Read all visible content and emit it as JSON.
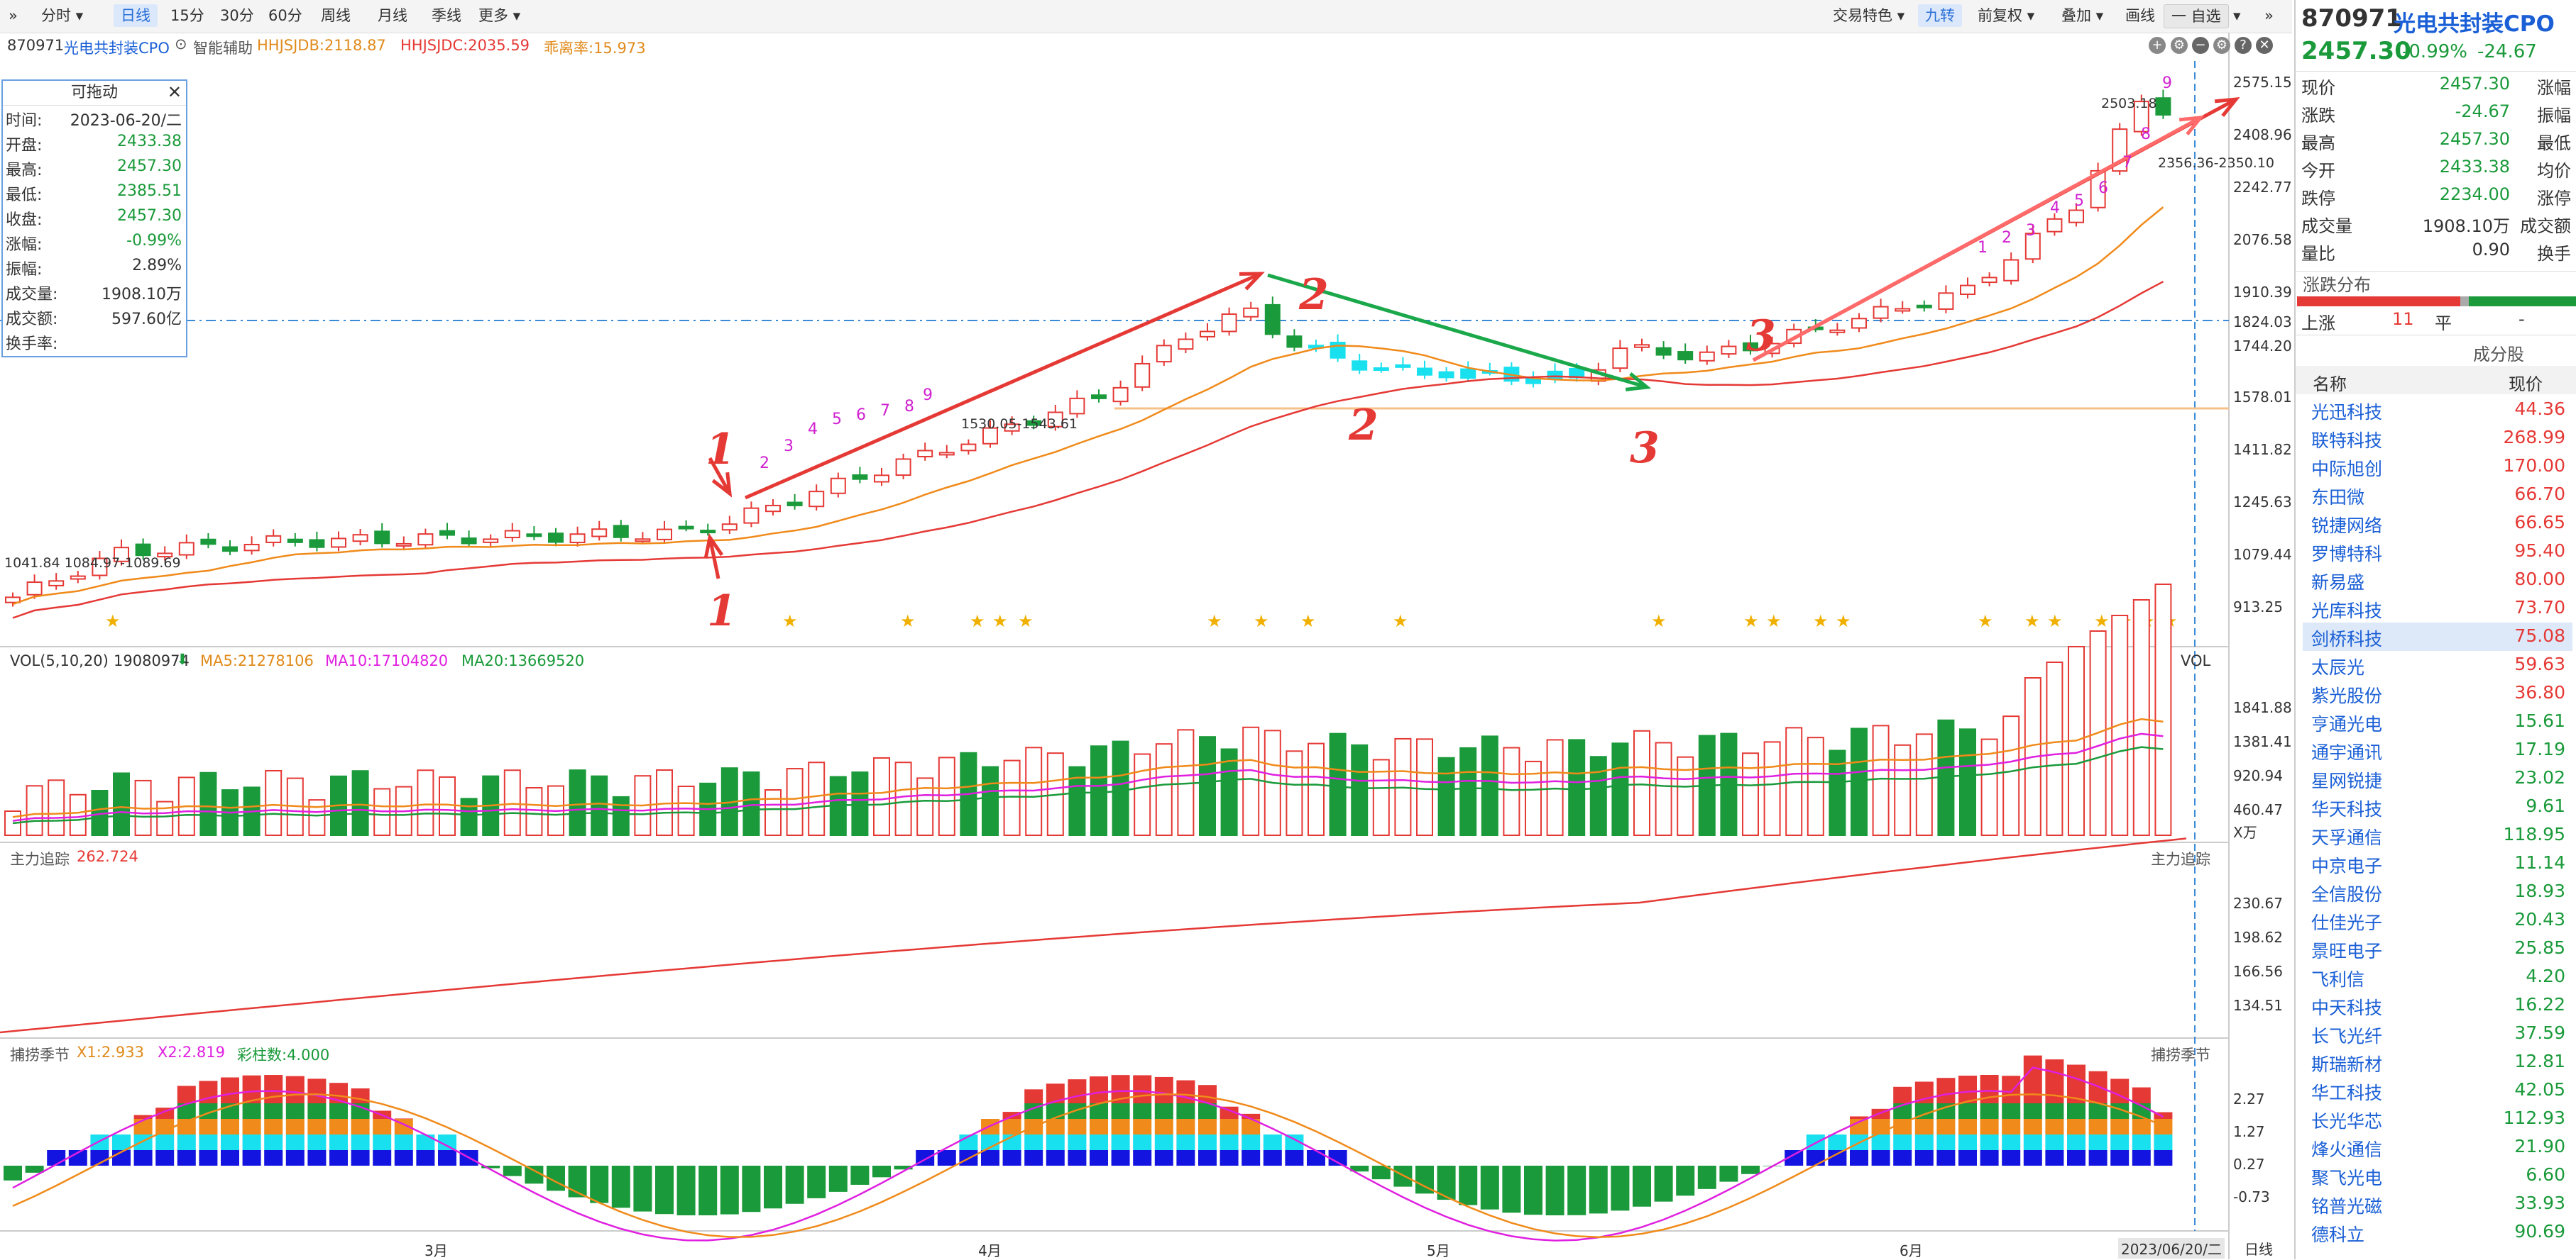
{
  "toolbar": {
    "left_items": [
      "分时",
      "日线",
      "15分",
      "30分",
      "60分",
      "周线",
      "月线",
      "季线",
      "更多"
    ],
    "active": "日线",
    "right_items": [
      "交易特色",
      "九转",
      "前复权",
      "叠加",
      "画线"
    ],
    "active_right": "九转",
    "zixuan": "一 自选"
  },
  "header": {
    "code": "870971",
    "name": "光电共封装CPO",
    "assist": "智能辅助",
    "ind1": "HHJSJDB:2118.87",
    "ind2": "HHJSJDC:2035.59",
    "ind3": "乖离率:15.973"
  },
  "infobox": {
    "title": "可拖动",
    "rows": [
      {
        "k": "时间:",
        "v": "2023-06-20/二",
        "c": "#333"
      },
      {
        "k": "开盘:",
        "v": "2433.38",
        "c": "#1a9a3a"
      },
      {
        "k": "最高:",
        "v": "2457.30",
        "c": "#1a9a3a"
      },
      {
        "k": "最低:",
        "v": "2385.51",
        "c": "#1a9a3a"
      },
      {
        "k": "收盘:",
        "v": "2457.30",
        "c": "#1a9a3a"
      },
      {
        "k": "涨幅:",
        "v": "-0.99%",
        "c": "#1a9a3a"
      },
      {
        "k": "振幅:",
        "v": "2.89%",
        "c": "#333"
      },
      {
        "k": "成交量:",
        "v": "1908.10万",
        "c": "#333"
      },
      {
        "k": "成交额:",
        "v": "597.60亿",
        "c": "#333"
      },
      {
        "k": "换手率:",
        "v": "",
        "c": "#333"
      }
    ]
  },
  "price_axis": [
    "2575.15",
    "2408.96",
    "2242.77",
    "2076.58",
    "1910.39",
    "1824.03",
    "1744.20",
    "1578.01",
    "1411.82",
    "1245.63",
    "1079.44",
    "913.25"
  ],
  "annotations": {
    "a1": "1",
    "a2": "2",
    "a3": "3",
    "low_label": "1041.84 1084.97-1089.69",
    "mid_label": "1530.05-1543.61",
    "high_label": "2503.18",
    "high_label2": "2356.36-2350.10",
    "nine_counts": [
      "2",
      "3",
      "4",
      "5",
      "6",
      "7",
      "8",
      "9",
      "1",
      "2",
      "3",
      "4",
      "5",
      "6",
      "7",
      "8",
      "9"
    ]
  },
  "volume": {
    "title": "VOL(5,10,20)",
    "value": "19080974",
    "ma5": "MA5:21278106",
    "ma10": "MA10:17104820",
    "ma20": "MA20:13669520",
    "label": "VOL",
    "axis": [
      "1841.88",
      "1381.41",
      "920.94",
      "460.47",
      "X万"
    ]
  },
  "track": {
    "title": "主力追踪",
    "value": "262.724",
    "label": "主力追踪",
    "axis": [
      "230.67",
      "198.62",
      "166.56",
      "134.51"
    ]
  },
  "season": {
    "title": "捕捞季节",
    "x1": "X1:2.933",
    "x2": "X2:2.819",
    "bars": "彩柱数:4.000",
    "label": "捕捞季节",
    "axis": [
      "2.27",
      "1.27",
      "0.27",
      "-0.73"
    ]
  },
  "date_axis": {
    "months": [
      "3月",
      "4月",
      "5月",
      "6月"
    ],
    "current": "2023/06/20/二",
    "period": "日线"
  },
  "quote": {
    "code": "870971",
    "name": "光电共封装CPO",
    "price": "2457.30",
    "change_pct": "-0.99%",
    "change": "-24.67",
    "rows": [
      {
        "k": "现价",
        "v": "2457.30",
        "c": "#1a9a3a",
        "k2": "涨幅"
      },
      {
        "k": "涨跌",
        "v": "-24.67",
        "c": "#1a9a3a",
        "k2": "振幅"
      },
      {
        "k": "最高",
        "v": "2457.30",
        "c": "#1a9a3a",
        "k2": "最低"
      },
      {
        "k": "今开",
        "v": "2433.38",
        "c": "#1a9a3a",
        "k2": "均价"
      },
      {
        "k": "跌停",
        "v": "2234.00",
        "c": "#1a9a3a",
        "k2": "涨停"
      },
      {
        "k": "成交量",
        "v": "1908.10万",
        "c": "#333",
        "k2": "成交额"
      },
      {
        "k": "量比",
        "v": "0.90",
        "c": "#333",
        "k2": "换手"
      }
    ],
    "dist_title": "涨跌分布",
    "up_label": "上涨",
    "up_count": "11",
    "flat_label": "平",
    "flat_count": "-",
    "constituents_title": "成分股",
    "col_name": "名称",
    "col_price": "现价"
  },
  "stocks": [
    {
      "name": "光迅科技",
      "price": "44.36",
      "c": "#e53935"
    },
    {
      "name": "联特科技",
      "price": "268.99",
      "c": "#e53935"
    },
    {
      "name": "中际旭创",
      "price": "170.00",
      "c": "#e53935"
    },
    {
      "name": "东田微",
      "price": "66.70",
      "c": "#e53935"
    },
    {
      "name": "锐捷网络",
      "price": "66.65",
      "c": "#e53935"
    },
    {
      "name": "罗博特科",
      "price": "95.40",
      "c": "#e53935"
    },
    {
      "name": "新易盛",
      "price": "80.00",
      "c": "#e53935"
    },
    {
      "name": "光库科技",
      "price": "73.70",
      "c": "#e53935"
    },
    {
      "name": "剑桥科技",
      "price": "75.08",
      "c": "#e53935"
    },
    {
      "name": "太辰光",
      "price": "59.63",
      "c": "#e53935"
    },
    {
      "name": "紫光股份",
      "price": "36.80",
      "c": "#e53935"
    },
    {
      "name": "亨通光电",
      "price": "15.61",
      "c": "#1a9a3a"
    },
    {
      "name": "通宇通讯",
      "price": "17.19",
      "c": "#1a9a3a"
    },
    {
      "name": "星网锐捷",
      "price": "23.02",
      "c": "#1a9a3a"
    },
    {
      "name": "华天科技",
      "price": "9.61",
      "c": "#1a9a3a"
    },
    {
      "name": "天孚通信",
      "price": "118.95",
      "c": "#1a9a3a"
    },
    {
      "name": "中京电子",
      "price": "11.14",
      "c": "#1a9a3a"
    },
    {
      "name": "全信股份",
      "price": "18.93",
      "c": "#1a9a3a"
    },
    {
      "name": "仕佳光子",
      "price": "20.43",
      "c": "#1a9a3a"
    },
    {
      "name": "景旺电子",
      "price": "25.85",
      "c": "#1a9a3a"
    },
    {
      "name": "飞利信",
      "price": "4.20",
      "c": "#1a9a3a"
    },
    {
      "name": "中天科技",
      "price": "16.22",
      "c": "#1a9a3a"
    },
    {
      "name": "长飞光纤",
      "price": "37.59",
      "c": "#1a9a3a"
    },
    {
      "name": "斯瑞新材",
      "price": "12.81",
      "c": "#1a9a3a"
    },
    {
      "name": "华工科技",
      "price": "42.05",
      "c": "#1a9a3a"
    },
    {
      "name": "长光华芯",
      "price": "112.93",
      "c": "#1a9a3a"
    },
    {
      "name": "烽火通信",
      "price": "21.90",
      "c": "#1a9a3a"
    },
    {
      "name": "聚飞光电",
      "price": "6.60",
      "c": "#1a9a3a"
    },
    {
      "name": "铭普光磁",
      "price": "33.93",
      "c": "#1a9a3a"
    },
    {
      "name": "德科立",
      "price": "90.69",
      "c": "#1a9a3a"
    }
  ],
  "colors": {
    "up": "#e53935",
    "down": "#1a9a3a",
    "cyan": "#19e0ee",
    "accent": "#1a5fd6"
  }
}
